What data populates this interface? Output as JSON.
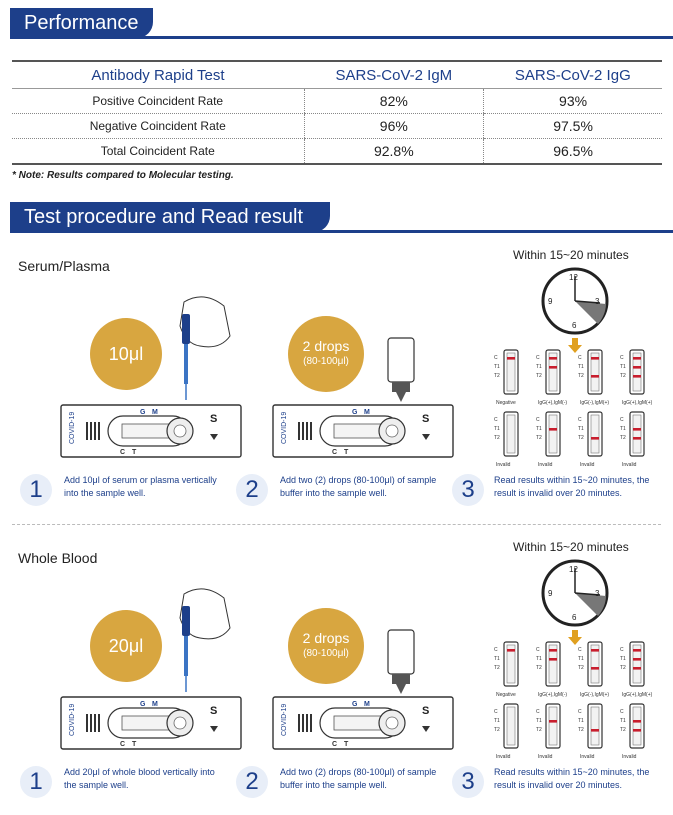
{
  "performance": {
    "title": "Performance",
    "headers": [
      "Antibody Rapid Test",
      "SARS-CoV-2 IgM",
      "SARS-CoV-2 IgG"
    ],
    "rows": [
      {
        "label": "Positive Coincident Rate",
        "igm": "82%",
        "igg": "93%"
      },
      {
        "label": "Negative Coincident Rate",
        "igm": "96%",
        "igg": "97.5%"
      },
      {
        "label": "Total Coincident Rate",
        "igm": "92.8%",
        "igg": "96.5%"
      }
    ],
    "note": "* Note: Results compared to Molecular testing."
  },
  "procedure": {
    "title": "Test procedure and Read result",
    "device_label": "COVID-19",
    "sections": [
      {
        "label": "Serum/Plasma",
        "volume": "10μl",
        "drops": "2 drops",
        "drops_sub": "(80-100μl)",
        "within": "Within 15~20 minutes",
        "steps": [
          {
            "num": "1",
            "text": "Add 10μl of serum or plasma vertically into the sample well."
          },
          {
            "num": "2",
            "text": "Add two (2) drops (80-100μl) of sample buffer into the sample well."
          },
          {
            "num": "3",
            "text": "Read results within 15~20 minutes, the result is invalid over 20 minutes."
          }
        ]
      },
      {
        "label": "Whole Blood",
        "volume": "20μl",
        "drops": "2 drops",
        "drops_sub": "(80-100μl)",
        "within": "Within 15~20 minutes",
        "steps": [
          {
            "num": "1",
            "text": "Add 20μl of whole blood vertically into the sample well."
          },
          {
            "num": "2",
            "text": "Add two (2) drops (80-100μl) of sample buffer into the sample well."
          },
          {
            "num": "3",
            "text": "Read results within 15~20 minutes, the result is invalid over 20 minutes."
          }
        ]
      }
    ],
    "result_captions": [
      "Negative",
      "IgG(+),IgM(-)",
      "IgG(-),IgM(+)",
      "IgG(+),IgM(+)",
      "Invalid",
      "Invalid",
      "Invalid",
      "Invalid"
    ],
    "line_labels": [
      "C",
      "T1",
      "T2"
    ],
    "device_marks": {
      "g": "G",
      "m": "M",
      "s": "S",
      "c": "C",
      "t": "T"
    },
    "clock_numbers": [
      "12",
      "3",
      "6",
      "9"
    ],
    "colors": {
      "brand": "#1d3f8a",
      "bubble": "#d8a640",
      "line": "#c81e2e"
    }
  }
}
